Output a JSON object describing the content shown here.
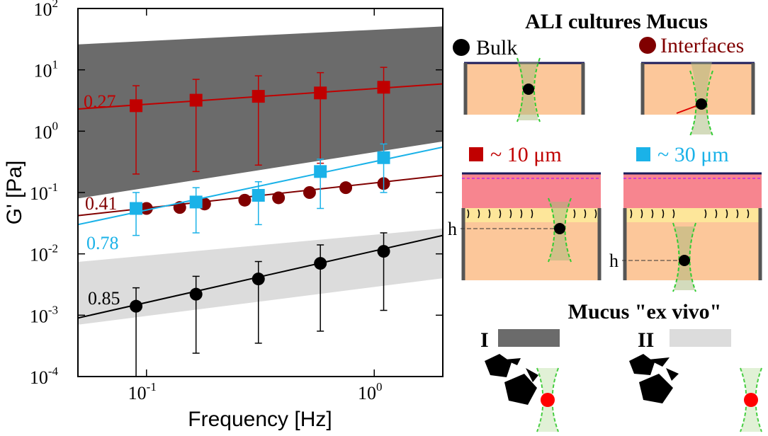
{
  "chart_data": {
    "type": "scatter",
    "xlabel": "Frequency [Hz]",
    "ylabel": "G' [Pa]",
    "log_x": true,
    "log_y": true,
    "xlim": [
      0.05,
      2
    ],
    "ylim": [
      0.0001,
      100
    ],
    "xticks": [
      {
        "value": 0.1,
        "label": "10^-1"
      },
      {
        "value": 1,
        "label": "10^0"
      }
    ],
    "yticks": [
      {
        "value": 0.0001,
        "label": "10^-4"
      },
      {
        "value": 0.001,
        "label": "10^-3"
      },
      {
        "value": 0.01,
        "label": "10^-2"
      },
      {
        "value": 0.1,
        "label": "10^-1"
      },
      {
        "value": 1,
        "label": "10^0"
      },
      {
        "value": 10,
        "label": "10^1"
      },
      {
        "value": 100,
        "label": "10^2"
      }
    ],
    "bands": [
      {
        "color": "#6b6b6b",
        "x": [
          0.05,
          2
        ],
        "lower": [
          0.08,
          0.68
        ],
        "upper": [
          26,
          51
        ]
      },
      {
        "color": "#dcdcdc",
        "x": [
          0.05,
          2
        ],
        "lower": [
          0.0007,
          0.004
        ],
        "upper": [
          0.0074,
          0.026
        ]
      }
    ],
    "series": [
      {
        "marker": "square",
        "color": "#c00000",
        "x": [
          0.09,
          0.165,
          0.31,
          0.58,
          1.1
        ],
        "values": [
          2.6,
          3.2,
          3.7,
          4.2,
          5.2
        ],
        "upper": [
          5.5,
          7,
          8,
          9,
          11
        ],
        "lower": [
          0.2,
          0.22,
          0.28,
          0.3,
          0.33
        ],
        "fit": {
          "x": [
            0.05,
            2
          ],
          "y": [
            2.3,
            5.9
          ]
        },
        "slope_label": "0.27"
      },
      {
        "marker": "circle",
        "color": "#800000",
        "x": [
          0.1,
          0.14,
          0.18,
          0.27,
          0.38,
          0.52,
          0.75,
          1.1
        ],
        "values": [
          0.055,
          0.057,
          0.065,
          0.075,
          0.082,
          0.1,
          0.12,
          0.14
        ],
        "fit": {
          "x": [
            0.05,
            2
          ],
          "y": [
            0.042,
            0.19
          ]
        },
        "slope_label": "0.41"
      },
      {
        "marker": "square",
        "color": "#1ab2e8",
        "x": [
          0.09,
          0.165,
          0.31,
          0.58,
          1.1
        ],
        "values": [
          0.055,
          0.07,
          0.09,
          0.22,
          0.37
        ],
        "upper": [
          0.1,
          0.12,
          0.15,
          0.35,
          0.62
        ],
        "lower": [
          0.02,
          0.022,
          0.03,
          0.055,
          0.1
        ],
        "fit": {
          "x": [
            0.05,
            2
          ],
          "y": [
            0.03,
            0.55
          ]
        },
        "slope_label": "0.78"
      },
      {
        "marker": "circle",
        "color": "#000000",
        "x": [
          0.09,
          0.165,
          0.31,
          0.58,
          1.1
        ],
        "values": [
          0.0014,
          0.0022,
          0.0039,
          0.007,
          0.011
        ],
        "upper": [
          0.0028,
          0.0043,
          0.0075,
          0.014,
          0.022
        ],
        "lower": [
          0.0001,
          0.00024,
          0.00035,
          0.00055,
          0.0012
        ],
        "fit": {
          "x": [
            0.05,
            2
          ],
          "y": [
            0.0009,
            0.02
          ]
        },
        "slope_label": "0.85"
      }
    ]
  },
  "diagram": {
    "title": "ALI cultures Mucus",
    "bulk": "Bulk",
    "interfaces": "Interfaces",
    "size_small": "~ 10 μm",
    "size_large": "~ 30 μm",
    "h_left": "h",
    "h_right": "h",
    "ex_vivo_title": "Mucus \"ex vivo\"",
    "type_1": "I",
    "type_2": "II"
  }
}
